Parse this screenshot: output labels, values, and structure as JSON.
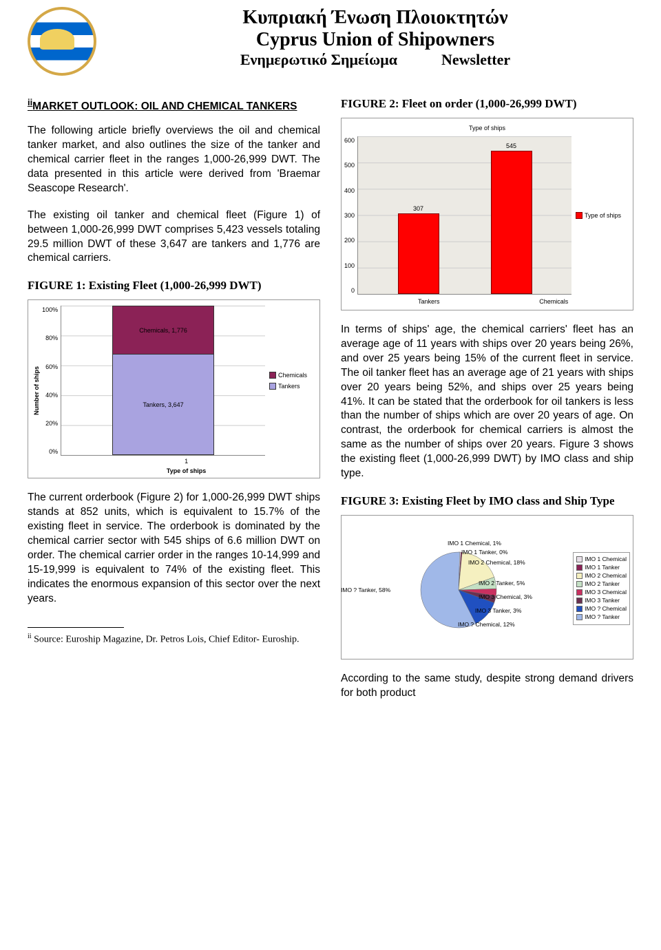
{
  "header": {
    "title_gr": "Κυπριακή Ένωση Πλοιοκτητών",
    "title_en": "Cyprus Union of Shipowners",
    "sub_gr": "Ενημερωτικό Σημείωμα",
    "sub_en": "Newsletter"
  },
  "article": {
    "ref": "ii",
    "title": "MARKET OUTLOOK: OIL AND CHEMICAL TANKERS",
    "para1": "The following article briefly overviews the oil and chemical tanker market, and also outlines the size of the tanker and chemical carrier fleet in the ranges 1,000-26,999 DWT. The data presented in this article were derived from 'Braemar Seascope Research'.",
    "para2": "The existing oil tanker and chemical fleet (Figure 1) of between 1,000-26,999 DWT comprises 5,423 vessels totaling 29.5 million DWT of these 3,647 are tankers and 1,776 are chemical carriers.",
    "para3": "The current orderbook (Figure 2) for 1,000-26,999 DWT ships stands at 852 units, which is equivalent to 15.7% of the existing fleet in service. The orderbook is dominated by the chemical carrier sector with 545 ships of 6.6 million DWT on order. The chemical carrier order in the ranges 10-14,999 and 15-19,999 is equivalent to 74% of the existing fleet. This indicates the enormous expansion of this sector over the next years.",
    "para4": "In terms of ships' age, the chemical carriers' fleet has an average age of 11 years with ships over 20 years being 26%, and over 25 years being 15% of the current fleet in service. The oil tanker fleet has an average age of 21 years with ships over 20 years being 52%, and ships over 25 years being 41%. It can be stated that the orderbook for oil tankers is less than the number of ships which are over 20 years of age. On contrast, the orderbook for chemical carriers is almost the same as the number of ships over 20 years. Figure 3 shows the existing fleet (1,000-26,999 DWT) by IMO class and ship type.",
    "para5": "According to the same study, despite strong demand drivers for both product"
  },
  "fig1": {
    "title": "FIGURE 1: Existing Fleet (1,000-26,999 DWT)",
    "yaxis_label": "Number of ships",
    "yticks": [
      "100%",
      "80%",
      "60%",
      "40%",
      "20%",
      "0%"
    ],
    "xtick": "1",
    "xaxis_title": "Type of ships",
    "top_label": "Chemicals, 1,776",
    "bot_label": "Tankers, 3,647",
    "top_color": "#8b2256",
    "bot_color": "#a9a3e0",
    "top_pct": 32.75,
    "bot_pct": 67.25,
    "legend": [
      "Chemicals",
      "Tankers"
    ]
  },
  "fig2": {
    "title": "FIGURE 2: Fleet on order (1,000-26,999 DWT)",
    "chart_title": "Type of ships",
    "yticks": [
      "600",
      "500",
      "400",
      "300",
      "200",
      "100",
      "0"
    ],
    "ymax": 600,
    "bars": [
      {
        "label": "Tankers",
        "value": 307,
        "text": "307"
      },
      {
        "label": "Chemicals",
        "value": 545,
        "text": "545"
      }
    ],
    "bar_color": "#ff0000",
    "legend": "Type of ships"
  },
  "fig3": {
    "title": "FIGURE 3: Existing Fleet by IMO class and Ship Type",
    "slices": [
      {
        "label": "IMO 1 Chemical, 1%",
        "pct": 1,
        "color": "#e8e0e8"
      },
      {
        "label": "IMO 1 Tanker, 0%",
        "pct": 0.5,
        "color": "#8b2256"
      },
      {
        "label": "IMO 2 Chemical, 18%",
        "pct": 18,
        "color": "#f5f0c0"
      },
      {
        "label": "IMO 2 Tanker, 5%",
        "pct": 5,
        "color": "#c4e0c4"
      },
      {
        "label": "IMO 3 Chemical, 3%",
        "pct": 3,
        "color": "#c93060"
      },
      {
        "label": "IMO 3 Tanker, 3%",
        "pct": 3,
        "color": "#6a3050"
      },
      {
        "label": "IMO ? Chemical, 12%",
        "pct": 12,
        "color": "#2050c0"
      },
      {
        "label": "IMO ? Tanker, 58%",
        "pct": 58,
        "color": "#a0b8e8"
      }
    ],
    "legend": [
      "IMO 1 Chemical",
      "IMO 1 Tanker",
      "IMO 2 Chemical",
      "IMO 2 Tanker",
      "IMO 3 Chemical",
      "IMO 3 Tanker",
      "IMO ? Chemical",
      "IMO ? Tanker"
    ]
  },
  "footnote": {
    "ref": "ii",
    "text": " Source: Euroship Magazine, Dr. Petros Lois, Chief Editor- Euroship."
  }
}
